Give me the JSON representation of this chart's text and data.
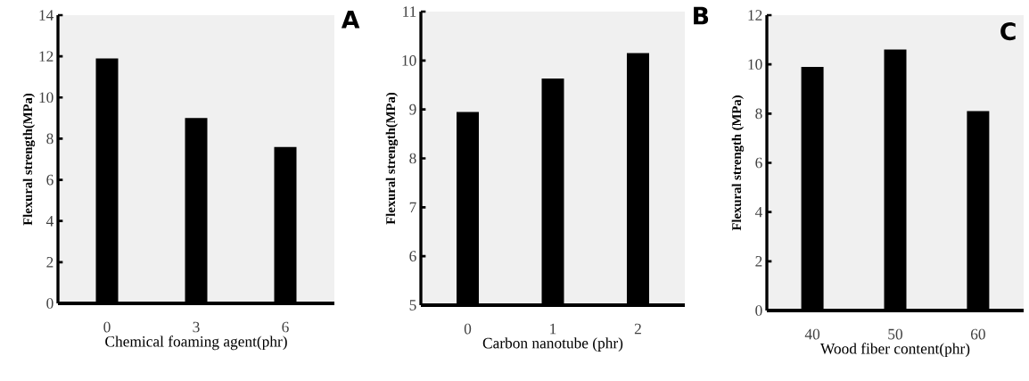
{
  "chart_data": [
    {
      "type": "bar",
      "categories": [
        "0",
        "3",
        "6"
      ],
      "values": [
        11.9,
        9.0,
        7.6
      ],
      "color": "#000000",
      "xlabel": "Chemical foaming agent(phr)",
      "ylabel": "Flexural strength(MPa)",
      "ylim": [
        0,
        14
      ],
      "yticks": [
        0,
        2,
        4,
        6,
        8,
        10,
        12,
        14
      ],
      "annotations": [
        "A"
      ]
    },
    {
      "type": "bar",
      "categories": [
        "0",
        "1",
        "2"
      ],
      "values": [
        8.95,
        9.63,
        10.15
      ],
      "color": "#000000",
      "xlabel": "Carbon nanotube (phr)",
      "ylabel": "Flexural strength(MPa)",
      "ylim": [
        5,
        11
      ],
      "yticks": [
        5,
        6,
        7,
        8,
        9,
        10,
        11
      ],
      "annotations": [
        "B"
      ]
    },
    {
      "type": "bar",
      "categories": [
        "40",
        "50",
        "60"
      ],
      "values": [
        9.9,
        10.6,
        8.1
      ],
      "color": "#000000",
      "xlabel": "Wood fiber content(phr)",
      "ylabel": "Flexural  strength (MPa)",
      "ylim": [
        0,
        12
      ],
      "yticks": [
        0,
        2,
        4,
        6,
        8,
        10,
        12
      ],
      "annotations": [
        "C"
      ]
    }
  ]
}
